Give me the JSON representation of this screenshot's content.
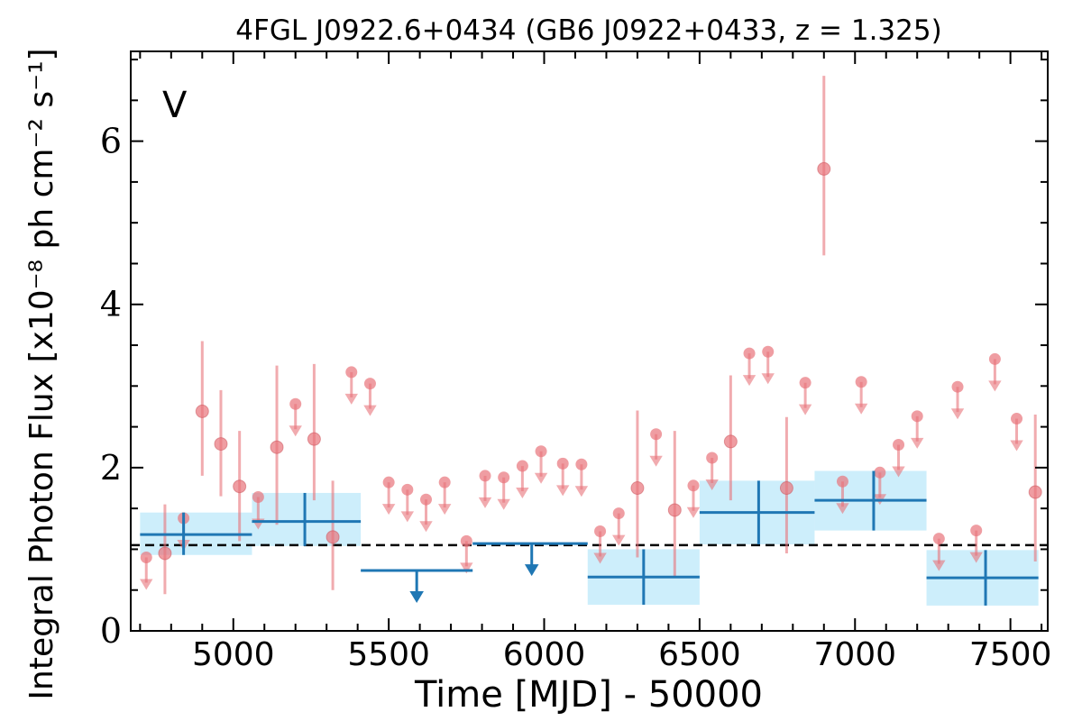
{
  "chart_data": {
    "type": "scatter",
    "title": "4FGL J0922.6+0434 (GB6 J0922+0433, z = 1.325)",
    "xlabel": "Time [MJD] - 50000",
    "ylabel": "Integral Photon Flux [x10⁻⁸ ph cm⁻² s⁻¹]",
    "annotation": "V",
    "xlim": [
      4670,
      7620
    ],
    "ylim": [
      0,
      7.1
    ],
    "xticks": [
      5000,
      5500,
      6000,
      6500,
      7000,
      7500
    ],
    "yticks": [
      0,
      2,
      4,
      6
    ],
    "mean_flux": 1.05,
    "colors": {
      "fine": "#e8737a",
      "coarse": "#1f77b4",
      "band": "#cdeefb",
      "annotation": "#d62728"
    },
    "fine_bins_detections": [
      {
        "x": 4780,
        "y": 0.95,
        "lo": 0.45,
        "hi": 1.55
      },
      {
        "x": 4900,
        "y": 2.69,
        "lo": 1.9,
        "hi": 3.55
      },
      {
        "x": 4960,
        "y": 2.29,
        "lo": 1.65,
        "hi": 2.95
      },
      {
        "x": 5020,
        "y": 1.77,
        "lo": 1.1,
        "hi": 2.45
      },
      {
        "x": 5140,
        "y": 2.25,
        "lo": 1.3,
        "hi": 3.25
      },
      {
        "x": 5260,
        "y": 2.35,
        "lo": 1.6,
        "hi": 3.27
      },
      {
        "x": 5320,
        "y": 1.15,
        "lo": 0.5,
        "hi": 1.84
      },
      {
        "x": 6300,
        "y": 1.75,
        "lo": 0.9,
        "hi": 2.7
      },
      {
        "x": 6420,
        "y": 1.48,
        "lo": 0.65,
        "hi": 2.45
      },
      {
        "x": 6600,
        "y": 2.32,
        "lo": 1.6,
        "hi": 3.13
      },
      {
        "x": 6780,
        "y": 1.75,
        "lo": 0.95,
        "hi": 2.62
      },
      {
        "x": 6900,
        "y": 5.66,
        "lo": 4.6,
        "hi": 6.8
      },
      {
        "x": 7580,
        "y": 1.7,
        "lo": 0.85,
        "hi": 2.65
      }
    ],
    "fine_bins_upper_limits": [
      {
        "x": 4720,
        "y": 0.9
      },
      {
        "x": 4840,
        "y": 1.38
      },
      {
        "x": 5080,
        "y": 1.64
      },
      {
        "x": 5200,
        "y": 2.78
      },
      {
        "x": 5380,
        "y": 3.17
      },
      {
        "x": 5440,
        "y": 3.03
      },
      {
        "x": 5500,
        "y": 1.82
      },
      {
        "x": 5560,
        "y": 1.73
      },
      {
        "x": 5620,
        "y": 1.61
      },
      {
        "x": 5680,
        "y": 1.82
      },
      {
        "x": 5750,
        "y": 1.1
      },
      {
        "x": 5810,
        "y": 1.9
      },
      {
        "x": 5870,
        "y": 1.88
      },
      {
        "x": 5930,
        "y": 2.02
      },
      {
        "x": 5990,
        "y": 2.2
      },
      {
        "x": 6060,
        "y": 2.05
      },
      {
        "x": 6120,
        "y": 2.04
      },
      {
        "x": 6180,
        "y": 1.22
      },
      {
        "x": 6240,
        "y": 1.44
      },
      {
        "x": 6360,
        "y": 2.41
      },
      {
        "x": 6480,
        "y": 1.78
      },
      {
        "x": 6540,
        "y": 2.12
      },
      {
        "x": 6660,
        "y": 3.4
      },
      {
        "x": 6720,
        "y": 3.42
      },
      {
        "x": 6840,
        "y": 3.04
      },
      {
        "x": 6960,
        "y": 1.83
      },
      {
        "x": 7020,
        "y": 3.05
      },
      {
        "x": 7080,
        "y": 1.94
      },
      {
        "x": 7140,
        "y": 2.28
      },
      {
        "x": 7200,
        "y": 2.63
      },
      {
        "x": 7270,
        "y": 1.13
      },
      {
        "x": 7330,
        "y": 2.99
      },
      {
        "x": 7390,
        "y": 1.23
      },
      {
        "x": 7450,
        "y": 3.33
      },
      {
        "x": 7520,
        "y": 2.6
      }
    ],
    "coarse_bins": [
      {
        "x0": 4700,
        "x1": 5060,
        "y": 1.18,
        "lo": 0.93,
        "hi": 1.45,
        "xc": 4840,
        "ul": false
      },
      {
        "x0": 5060,
        "x1": 5410,
        "y": 1.34,
        "lo": 1.04,
        "hi": 1.69,
        "xc": 5230,
        "ul": false
      },
      {
        "x0": 5410,
        "x1": 5770,
        "y": 0.74,
        "xc": 5590,
        "ul": true
      },
      {
        "x0": 5770,
        "x1": 6140,
        "y": 1.07,
        "xc": 5960,
        "ul": true
      },
      {
        "x0": 6140,
        "x1": 6500,
        "y": 0.66,
        "lo": 0.32,
        "hi": 1.0,
        "xc": 6320,
        "ul": false
      },
      {
        "x0": 6500,
        "x1": 6870,
        "y": 1.45,
        "lo": 1.06,
        "hi": 1.84,
        "xc": 6690,
        "ul": false
      },
      {
        "x0": 6870,
        "x1": 7230,
        "y": 1.6,
        "lo": 1.23,
        "hi": 1.96,
        "xc": 7060,
        "ul": false
      },
      {
        "x0": 7230,
        "x1": 7590,
        "y": 0.65,
        "lo": 0.31,
        "hi": 0.99,
        "xc": 7420,
        "ul": false
      }
    ]
  }
}
